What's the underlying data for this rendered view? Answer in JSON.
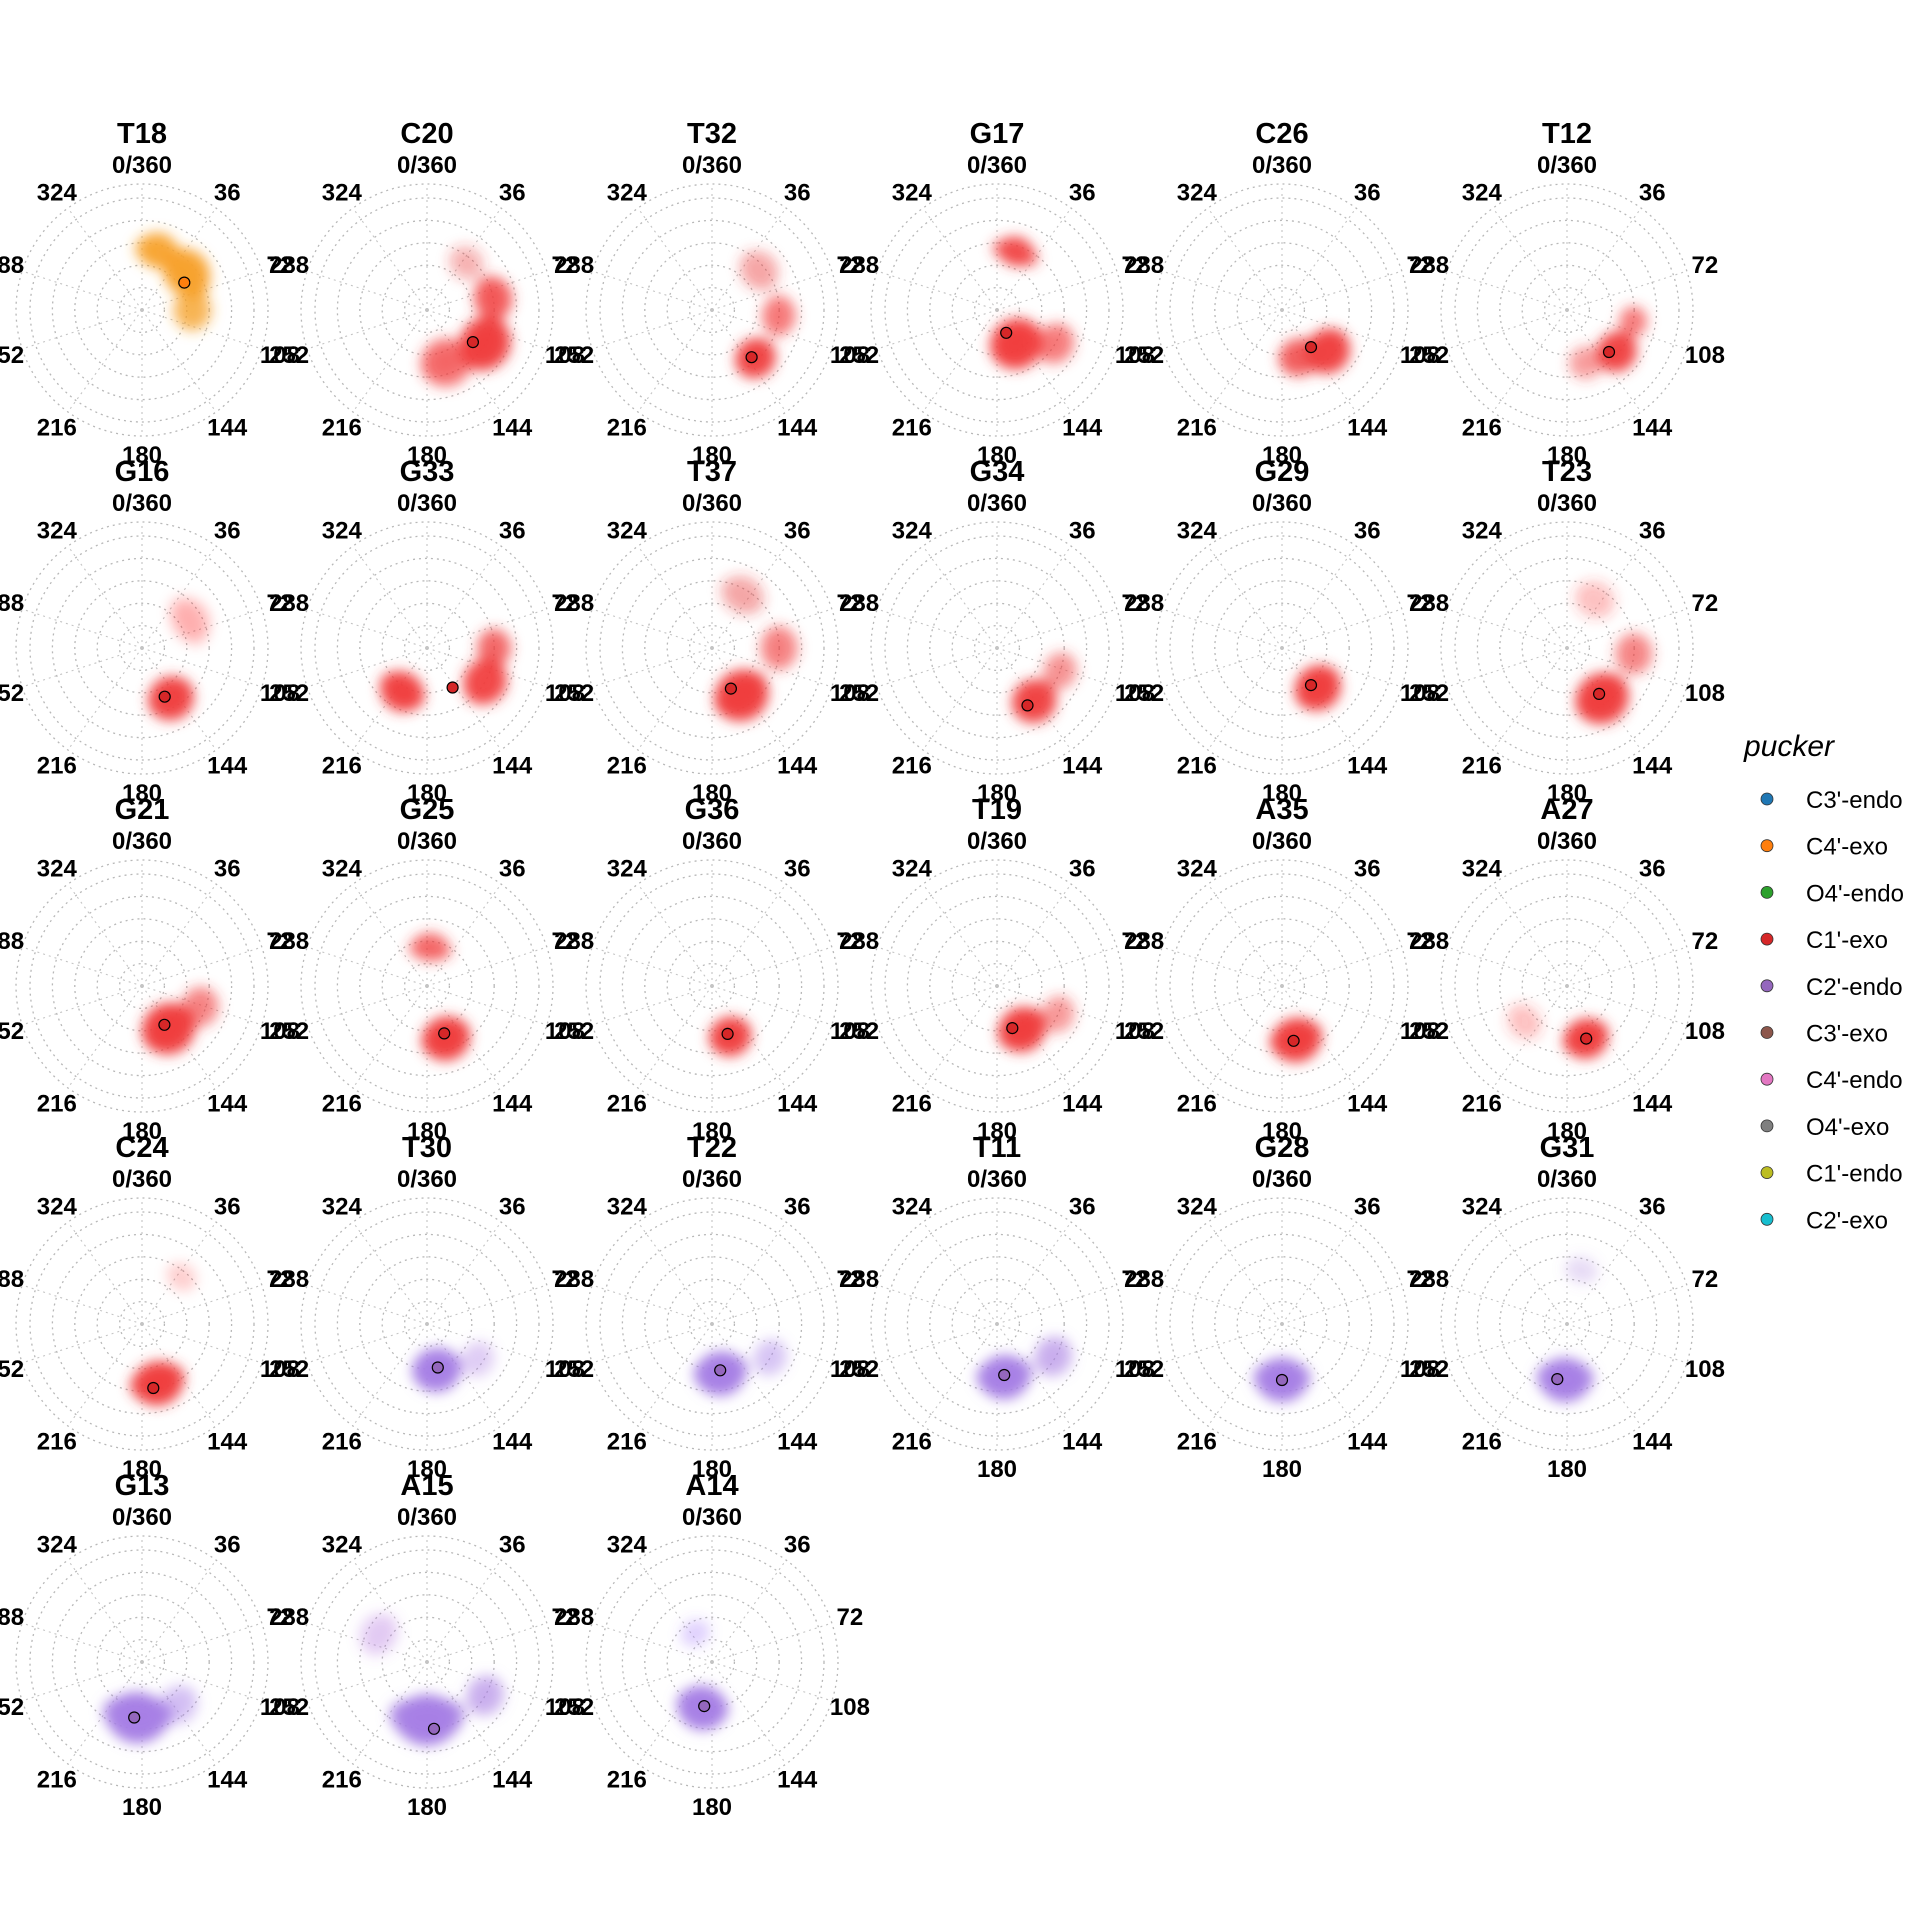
{
  "chart_data": {
    "type": "polar-density",
    "angle_ticks": [
      "0/360",
      "36",
      "72",
      "108",
      "144",
      "180",
      "216",
      "252",
      "288",
      "324"
    ],
    "colors": {
      "C3'-endo": "#1f77b4",
      "C4'-exo": "#ff7f0e",
      "O4'-endo": "#2ca02c",
      "C1'-exo": "#d62728",
      "C2'-endo": "#9467bd",
      "C3'-exo": "#8c564b",
      "C4'-endo": "#e377c2",
      "O4'-exo": "#7f7f7f",
      "C1'-endo": "#bcbd22",
      "C2'-exo": "#17becf"
    },
    "density_colors": {
      "C4'-exo": "#f7a12b",
      "C1'-exo": "#f03c3c",
      "C2'-endo": "#a77fe6"
    },
    "legend": {
      "title": "pucker",
      "position": "right",
      "entries": [
        "C3'-endo",
        "C4'-exo",
        "O4'-endo",
        "C1'-exo",
        "C2'-endo",
        "C3'-exo",
        "C4'-endo",
        "O4'-exo",
        "C1'-endo",
        "C2'-exo"
      ]
    },
    "panels": [
      {
        "title": "T18",
        "pucker": "C4'-exo",
        "mean_phase": 57,
        "mean_r": 0.45,
        "blobs": [
          {
            "phase": 50,
            "r": 0.52,
            "spread": 0.22,
            "weight": 1.0,
            "extent": 40
          },
          {
            "phase": 15,
            "r": 0.55,
            "spread": 0.18,
            "weight": 0.85,
            "extent": 30
          },
          {
            "phase": 90,
            "r": 0.45,
            "spread": 0.2,
            "weight": 0.55,
            "extent": 25
          }
        ]
      },
      {
        "title": "C20",
        "pucker": "C1'-exo",
        "mean_phase": 125,
        "mean_r": 0.5,
        "blobs": [
          {
            "phase": 120,
            "r": 0.6,
            "spread": 0.25,
            "weight": 1.0,
            "extent": 30
          },
          {
            "phase": 80,
            "r": 0.6,
            "spread": 0.2,
            "weight": 0.7,
            "extent": 25
          },
          {
            "phase": 160,
            "r": 0.5,
            "spread": 0.25,
            "weight": 0.5,
            "extent": 25
          },
          {
            "phase": 40,
            "r": 0.55,
            "spread": 0.18,
            "weight": 0.2,
            "extent": 20
          }
        ]
      },
      {
        "title": "T32",
        "pucker": "C1'-exo",
        "mean_phase": 140,
        "mean_r": 0.55,
        "blobs": [
          {
            "phase": 138,
            "r": 0.58,
            "spread": 0.2,
            "weight": 1.0,
            "extent": 20
          },
          {
            "phase": 95,
            "r": 0.6,
            "spread": 0.18,
            "weight": 0.45,
            "extent": 25
          },
          {
            "phase": 50,
            "r": 0.55,
            "spread": 0.2,
            "weight": 0.25,
            "extent": 25
          }
        ]
      },
      {
        "title": "G17",
        "pucker": "C1'-exo",
        "mean_phase": 158,
        "mean_r": 0.22,
        "blobs": [
          {
            "phase": 18,
            "r": 0.55,
            "spread": 0.15,
            "weight": 0.8,
            "extent": 35
          },
          {
            "phase": 150,
            "r": 0.35,
            "spread": 0.25,
            "weight": 0.9,
            "extent": 40
          },
          {
            "phase": 120,
            "r": 0.6,
            "spread": 0.2,
            "weight": 0.45,
            "extent": 20
          }
        ]
      },
      {
        "title": "C26",
        "pucker": "C1'-exo",
        "mean_phase": 142,
        "mean_r": 0.42,
        "blobs": [
          {
            "phase": 132,
            "r": 0.55,
            "spread": 0.22,
            "weight": 1.0,
            "extent": 25
          },
          {
            "phase": 160,
            "r": 0.45,
            "spread": 0.2,
            "weight": 0.6,
            "extent": 25
          }
        ]
      },
      {
        "title": "T12",
        "pucker": "C1'-exo",
        "mean_phase": 135,
        "mean_r": 0.53,
        "blobs": [
          {
            "phase": 130,
            "r": 0.58,
            "spread": 0.2,
            "weight": 1.0,
            "extent": 20
          },
          {
            "phase": 100,
            "r": 0.6,
            "spread": 0.15,
            "weight": 0.5,
            "extent": 15
          },
          {
            "phase": 160,
            "r": 0.5,
            "spread": 0.18,
            "weight": 0.3,
            "extent": 15
          }
        ]
      },
      {
        "title": "G16",
        "pucker": "C1'-exo",
        "mean_phase": 155,
        "mean_r": 0.48,
        "blobs": [
          {
            "phase": 150,
            "r": 0.52,
            "spread": 0.22,
            "weight": 1.0,
            "extent": 25
          },
          {
            "phase": 60,
            "r": 0.5,
            "spread": 0.2,
            "weight": 0.12,
            "extent": 40
          }
        ]
      },
      {
        "title": "G33",
        "pucker": "C1'-exo",
        "mean_phase": 147,
        "mean_r": 0.42,
        "blobs": [
          {
            "phase": 120,
            "r": 0.6,
            "spread": 0.22,
            "weight": 0.9,
            "extent": 25
          },
          {
            "phase": 210,
            "r": 0.45,
            "spread": 0.2,
            "weight": 0.85,
            "extent": 35
          },
          {
            "phase": 90,
            "r": 0.6,
            "spread": 0.18,
            "weight": 0.6,
            "extent": 20
          }
        ]
      },
      {
        "title": "T37",
        "pucker": "C1'-exo",
        "mean_phase": 155,
        "mean_r": 0.4,
        "blobs": [
          {
            "phase": 148,
            "r": 0.5,
            "spread": 0.25,
            "weight": 1.0,
            "extent": 35
          },
          {
            "phase": 90,
            "r": 0.6,
            "spread": 0.2,
            "weight": 0.4,
            "extent": 25
          },
          {
            "phase": 30,
            "r": 0.55,
            "spread": 0.2,
            "weight": 0.2,
            "extent": 30
          }
        ]
      },
      {
        "title": "G34",
        "pucker": "C1'-exo",
        "mean_phase": 152,
        "mean_r": 0.58,
        "blobs": [
          {
            "phase": 145,
            "r": 0.58,
            "spread": 0.22,
            "weight": 1.0,
            "extent": 20
          },
          {
            "phase": 110,
            "r": 0.6,
            "spread": 0.18,
            "weight": 0.35,
            "extent": 20
          }
        ]
      },
      {
        "title": "G29",
        "pucker": "C1'-exo",
        "mean_phase": 142,
        "mean_r": 0.42,
        "blobs": [
          {
            "phase": 138,
            "r": 0.48,
            "spread": 0.22,
            "weight": 1.0,
            "extent": 30
          }
        ]
      },
      {
        "title": "T23",
        "pucker": "C1'-exo",
        "mean_phase": 145,
        "mean_r": 0.5,
        "blobs": [
          {
            "phase": 145,
            "r": 0.55,
            "spread": 0.25,
            "weight": 1.0,
            "extent": 30
          },
          {
            "phase": 95,
            "r": 0.6,
            "spread": 0.2,
            "weight": 0.4,
            "extent": 20
          },
          {
            "phase": 30,
            "r": 0.5,
            "spread": 0.2,
            "weight": 0.15,
            "extent": 25
          }
        ]
      },
      {
        "title": "G21",
        "pucker": "C1'-exo",
        "mean_phase": 150,
        "mean_r": 0.4,
        "blobs": [
          {
            "phase": 148,
            "r": 0.45,
            "spread": 0.25,
            "weight": 1.0,
            "extent": 35
          },
          {
            "phase": 110,
            "r": 0.55,
            "spread": 0.2,
            "weight": 0.4,
            "extent": 20
          }
        ]
      },
      {
        "title": "G25",
        "pucker": "C1'-exo",
        "mean_phase": 160,
        "mean_r": 0.45,
        "blobs": [
          {
            "phase": 160,
            "r": 0.5,
            "spread": 0.22,
            "weight": 1.0,
            "extent": 30
          },
          {
            "phase": 5,
            "r": 0.35,
            "spread": 0.15,
            "weight": 0.4,
            "extent": 50
          }
        ]
      },
      {
        "title": "G36",
        "pucker": "C1'-exo",
        "mean_phase": 162,
        "mean_r": 0.45,
        "blobs": [
          {
            "phase": 160,
            "r": 0.48,
            "spread": 0.2,
            "weight": 1.0,
            "extent": 25
          }
        ]
      },
      {
        "title": "T19",
        "pucker": "C1'-exo",
        "mean_phase": 160,
        "mean_r": 0.4,
        "blobs": [
          {
            "phase": 150,
            "r": 0.45,
            "spread": 0.22,
            "weight": 1.0,
            "extent": 35
          },
          {
            "phase": 115,
            "r": 0.6,
            "spread": 0.18,
            "weight": 0.3,
            "extent": 20
          }
        ]
      },
      {
        "title": "A35",
        "pucker": "C1'-exo",
        "mean_phase": 168,
        "mean_r": 0.5,
        "blobs": [
          {
            "phase": 165,
            "r": 0.5,
            "spread": 0.22,
            "weight": 1.0,
            "extent": 35
          }
        ]
      },
      {
        "title": "A27",
        "pucker": "C1'-exo",
        "mean_phase": 160,
        "mean_r": 0.5,
        "blobs": [
          {
            "phase": 160,
            "r": 0.5,
            "spread": 0.2,
            "weight": 1.0,
            "extent": 30
          },
          {
            "phase": 230,
            "r": 0.5,
            "spread": 0.18,
            "weight": 0.15,
            "extent": 25
          }
        ]
      },
      {
        "title": "C24",
        "pucker": "C1'-exo",
        "mean_phase": 170,
        "mean_r": 0.58,
        "blobs": [
          {
            "phase": 165,
            "r": 0.55,
            "spread": 0.22,
            "weight": 1.0,
            "extent": 35
          },
          {
            "phase": 40,
            "r": 0.55,
            "spread": 0.15,
            "weight": 0.1,
            "extent": 20
          }
        ]
      },
      {
        "title": "T30",
        "pucker": "C2'-endo",
        "mean_phase": 166,
        "mean_r": 0.4,
        "blobs": [
          {
            "phase": 168,
            "r": 0.42,
            "spread": 0.22,
            "weight": 1.0,
            "extent": 35
          },
          {
            "phase": 125,
            "r": 0.55,
            "spread": 0.18,
            "weight": 0.2,
            "extent": 20
          }
        ]
      },
      {
        "title": "T22",
        "pucker": "C2'-endo",
        "mean_phase": 170,
        "mean_r": 0.42,
        "blobs": [
          {
            "phase": 170,
            "r": 0.45,
            "spread": 0.22,
            "weight": 1.0,
            "extent": 40
          },
          {
            "phase": 120,
            "r": 0.6,
            "spread": 0.18,
            "weight": 0.25,
            "extent": 20
          }
        ]
      },
      {
        "title": "T11",
        "pucker": "C2'-endo",
        "mean_phase": 172,
        "mean_r": 0.46,
        "blobs": [
          {
            "phase": 172,
            "r": 0.48,
            "spread": 0.22,
            "weight": 1.0,
            "extent": 40
          },
          {
            "phase": 120,
            "r": 0.58,
            "spread": 0.2,
            "weight": 0.4,
            "extent": 20
          }
        ]
      },
      {
        "title": "G28",
        "pucker": "C2'-endo",
        "mean_phase": 180,
        "mean_r": 0.5,
        "blobs": [
          {
            "phase": 180,
            "r": 0.5,
            "spread": 0.22,
            "weight": 1.0,
            "extent": 40
          }
        ]
      },
      {
        "title": "G31",
        "pucker": "C2'-endo",
        "mean_phase": 190,
        "mean_r": 0.5,
        "blobs": [
          {
            "phase": 182,
            "r": 0.5,
            "spread": 0.22,
            "weight": 1.0,
            "extent": 40
          },
          {
            "phase": 15,
            "r": 0.5,
            "spread": 0.15,
            "weight": 0.12,
            "extent": 25
          }
        ]
      },
      {
        "title": "G13",
        "pucker": "C2'-endo",
        "mean_phase": 188,
        "mean_r": 0.5,
        "blobs": [
          {
            "phase": 185,
            "r": 0.5,
            "spread": 0.25,
            "weight": 1.0,
            "extent": 50
          },
          {
            "phase": 140,
            "r": 0.5,
            "spread": 0.2,
            "weight": 0.25,
            "extent": 25
          }
        ]
      },
      {
        "title": "A15",
        "pucker": "C2'-endo",
        "mean_phase": 174,
        "mean_r": 0.6,
        "blobs": [
          {
            "phase": 180,
            "r": 0.52,
            "spread": 0.25,
            "weight": 1.0,
            "extent": 55
          },
          {
            "phase": 120,
            "r": 0.6,
            "spread": 0.2,
            "weight": 0.4,
            "extent": 20
          },
          {
            "phase": 300,
            "r": 0.5,
            "spread": 0.2,
            "weight": 0.15,
            "extent": 30
          }
        ]
      },
      {
        "title": "A14",
        "pucker": "C2'-endo",
        "mean_phase": 190,
        "mean_r": 0.4,
        "blobs": [
          {
            "phase": 192,
            "r": 0.42,
            "spread": 0.22,
            "weight": 1.0,
            "extent": 40
          },
          {
            "phase": 330,
            "r": 0.3,
            "spread": 0.15,
            "weight": 0.1,
            "extent": 30
          }
        ]
      }
    ]
  }
}
